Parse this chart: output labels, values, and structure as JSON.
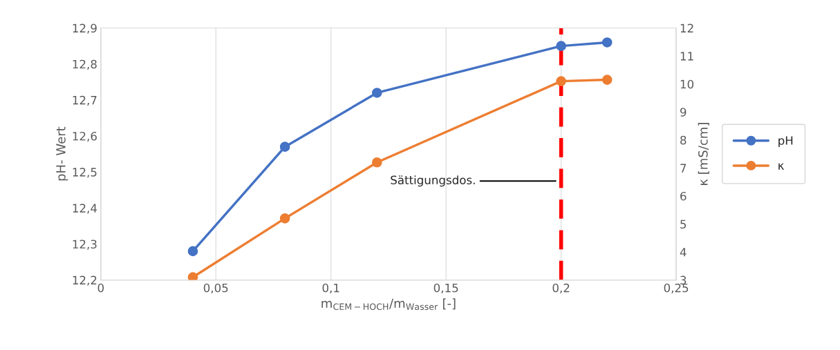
{
  "chart_data": {
    "type": "line",
    "xlabel": "m$_{CEM−HOCH}$/m$_{Wasser}$ [-]",
    "ylabel": "pH- Wert",
    "y2label": "κ [mS/cm]",
    "x": [
      0.04,
      0.08,
      0.12,
      0.2,
      0.22
    ],
    "series": [
      {
        "name": "pH",
        "color": "#4472c4",
        "values": [
          12.28,
          12.57,
          12.72,
          12.85,
          12.86
        ]
      },
      {
        "name": "κ",
        "color": "#ed7d31",
        "values": [
          3.1,
          5.2,
          7.2,
          10.1,
          10.15
        ],
        "axis": "y2"
      }
    ],
    "xlim": [
      0,
      0.25
    ],
    "xticks": [
      0,
      {
        "value": 0.05,
        "label": "0,05"
      },
      {
        "value": 0.1,
        "label": "0,1"
      },
      {
        "value": 0.15,
        "label": "0,15"
      },
      {
        "value": 0.2,
        "label": "0,2"
      },
      {
        "value": 0.25,
        "label": "0,25"
      }
    ],
    "ylim": [
      12.2,
      12.9
    ],
    "yticks": [
      {
        "value": 12.2,
        "label": "12,2"
      },
      {
        "value": 12.3,
        "label": "12,3"
      },
      {
        "value": 12.4,
        "label": "12,4"
      },
      {
        "value": 12.5,
        "label": "12,5"
      },
      {
        "value": 12.6,
        "label": "12,6"
      },
      {
        "value": 12.7,
        "label": "12,7"
      },
      {
        "value": 12.8,
        "label": "12,8"
      },
      {
        "value": 12.9,
        "label": "12,9"
      }
    ],
    "y2lim": [
      3,
      12
    ],
    "y2ticks": [
      3,
      4,
      5,
      6,
      7,
      8,
      9,
      10,
      11,
      12
    ],
    "ref_lines": [
      {
        "axis": "x",
        "value": 0.2,
        "label": "Sättigungsdos.",
        "color": "#ff0000",
        "line_style": "dashed"
      }
    ],
    "grid": "x",
    "legend": "right",
    "marker": "circle",
    "line_style": "solid"
  }
}
